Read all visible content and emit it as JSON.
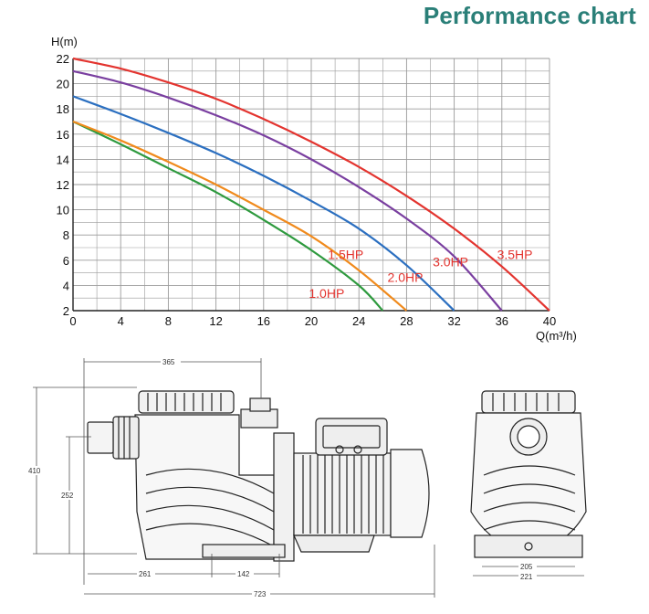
{
  "title": "Performance chart",
  "chart_data": {
    "type": "line",
    "xlabel": "Q(m³/h)",
    "ylabel": "H(m)",
    "xlim": [
      0,
      40
    ],
    "ylim": [
      2,
      22
    ],
    "x_ticks": [
      "0",
      "4",
      "8",
      "12",
      "16",
      "20",
      "24",
      "28",
      "32",
      "36",
      "40"
    ],
    "y_ticks": [
      "2",
      "4",
      "6",
      "8",
      "10",
      "12",
      "14",
      "16",
      "18",
      "20",
      "22"
    ],
    "grid": true,
    "series": [
      {
        "name": "1.0HP",
        "color": "#2e9a3e",
        "x": [
          0,
          4,
          8,
          12,
          16,
          20,
          24,
          26
        ],
        "y": [
          17,
          15.2,
          13.3,
          11.4,
          9.2,
          6.8,
          4,
          2
        ]
      },
      {
        "name": "1.5HP",
        "color": "#f08a1c",
        "x": [
          0,
          4,
          8,
          12,
          16,
          20,
          24,
          28
        ],
        "y": [
          17,
          15.5,
          13.8,
          12,
          10,
          7.9,
          5.2,
          2
        ]
      },
      {
        "name": "2.0HP",
        "color": "#2b6fc0",
        "x": [
          0,
          4,
          8,
          12,
          16,
          20,
          24,
          28,
          32
        ],
        "y": [
          19,
          17.6,
          16.1,
          14.5,
          12.7,
          10.7,
          8.5,
          5.6,
          2
        ]
      },
      {
        "name": "3.0HP",
        "color": "#7a3fa0",
        "x": [
          0,
          4,
          8,
          12,
          16,
          20,
          24,
          28,
          32,
          36
        ],
        "y": [
          21,
          20.1,
          18.9,
          17.5,
          15.9,
          14,
          11.8,
          9.3,
          6.3,
          2
        ]
      },
      {
        "name": "3.5HP",
        "color": "#e3342f",
        "x": [
          0,
          4,
          8,
          12,
          16,
          20,
          24,
          28,
          32,
          36,
          40
        ],
        "y": [
          22,
          21.2,
          20.1,
          18.8,
          17.2,
          15.4,
          13.4,
          11.1,
          8.5,
          5.5,
          2
        ]
      }
    ],
    "labels_color": "#e3342f"
  },
  "dimensions": {
    "total_length": "723",
    "top_length": "365",
    "height": "410",
    "inlet_height": "252",
    "base_left": "261",
    "base_mid": "142",
    "base_width_inner": "205",
    "base_width_outer": "221"
  }
}
